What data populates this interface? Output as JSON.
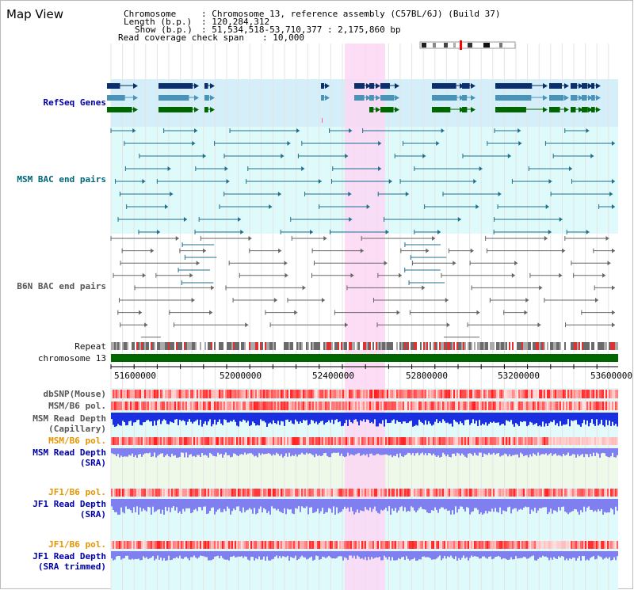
{
  "view_title": "Map View",
  "info": {
    "chromosome_key": "Chromosome",
    "chromosome_val": ": Chromosome 13, reference assembly (C57BL/6J) (Build 37)",
    "length_key": "Length (b.p.)",
    "length_val": ": 120,284,312",
    "show_key": "Show (b.p.)",
    "show_val": ": 51,534,518-53,710,377 : 2,175,860 bp",
    "coverage_key": "Read coverage check span",
    "coverage_val": ": 10,000"
  },
  "tracks": {
    "refseq": "RefSeq Genes",
    "msm_bac": "MSM BAC end pairs",
    "b6n_bac": "B6N BAC end pairs",
    "repeat": "Repeat",
    "chromosome": "chromosome 13",
    "dbsnp": "dbSNP(Mouse)",
    "msm_b6_pol": "MSM/B6 pol.",
    "msm_depth_cap_1": "MSM Read Depth",
    "msm_depth_cap_2": "(Capillary)",
    "msm_b6_pol_2": "MSM/B6 pol.",
    "msm_depth_sra_1": "MSM Read Depth",
    "msm_depth_sra_2": "(SRA)",
    "jf1_b6_pol": "JF1/B6 pol.",
    "jf1_depth_sra_1": "JF1 Read Depth",
    "jf1_depth_sra_2": "(SRA)",
    "jf1_b6_pol_2": "JF1/B6 pol.",
    "jf1_depth_trim_1": "JF1 Read Depth",
    "jf1_depth_trim_2": "(SRA trimmed)"
  },
  "axis": {
    "ticks": [
      "51600000",
      "52000000",
      "52400000",
      "52800000",
      "53200000",
      "53600000"
    ]
  },
  "colors": {
    "highlight": "#fbd7f3",
    "refseq_bg": "#d4effa",
    "msm_bg": "#dffafa",
    "gene_dark": "#0b2f6b",
    "gene_mid": "#4a93b8",
    "gene_green": "#006600",
    "chromosome_bar": "#006600",
    "msm_pair": "#1f6f8b",
    "b6n_pair": "#666666",
    "depth_blue": "#1a2fe0",
    "depth_sra": "#7f7ff0"
  }
}
